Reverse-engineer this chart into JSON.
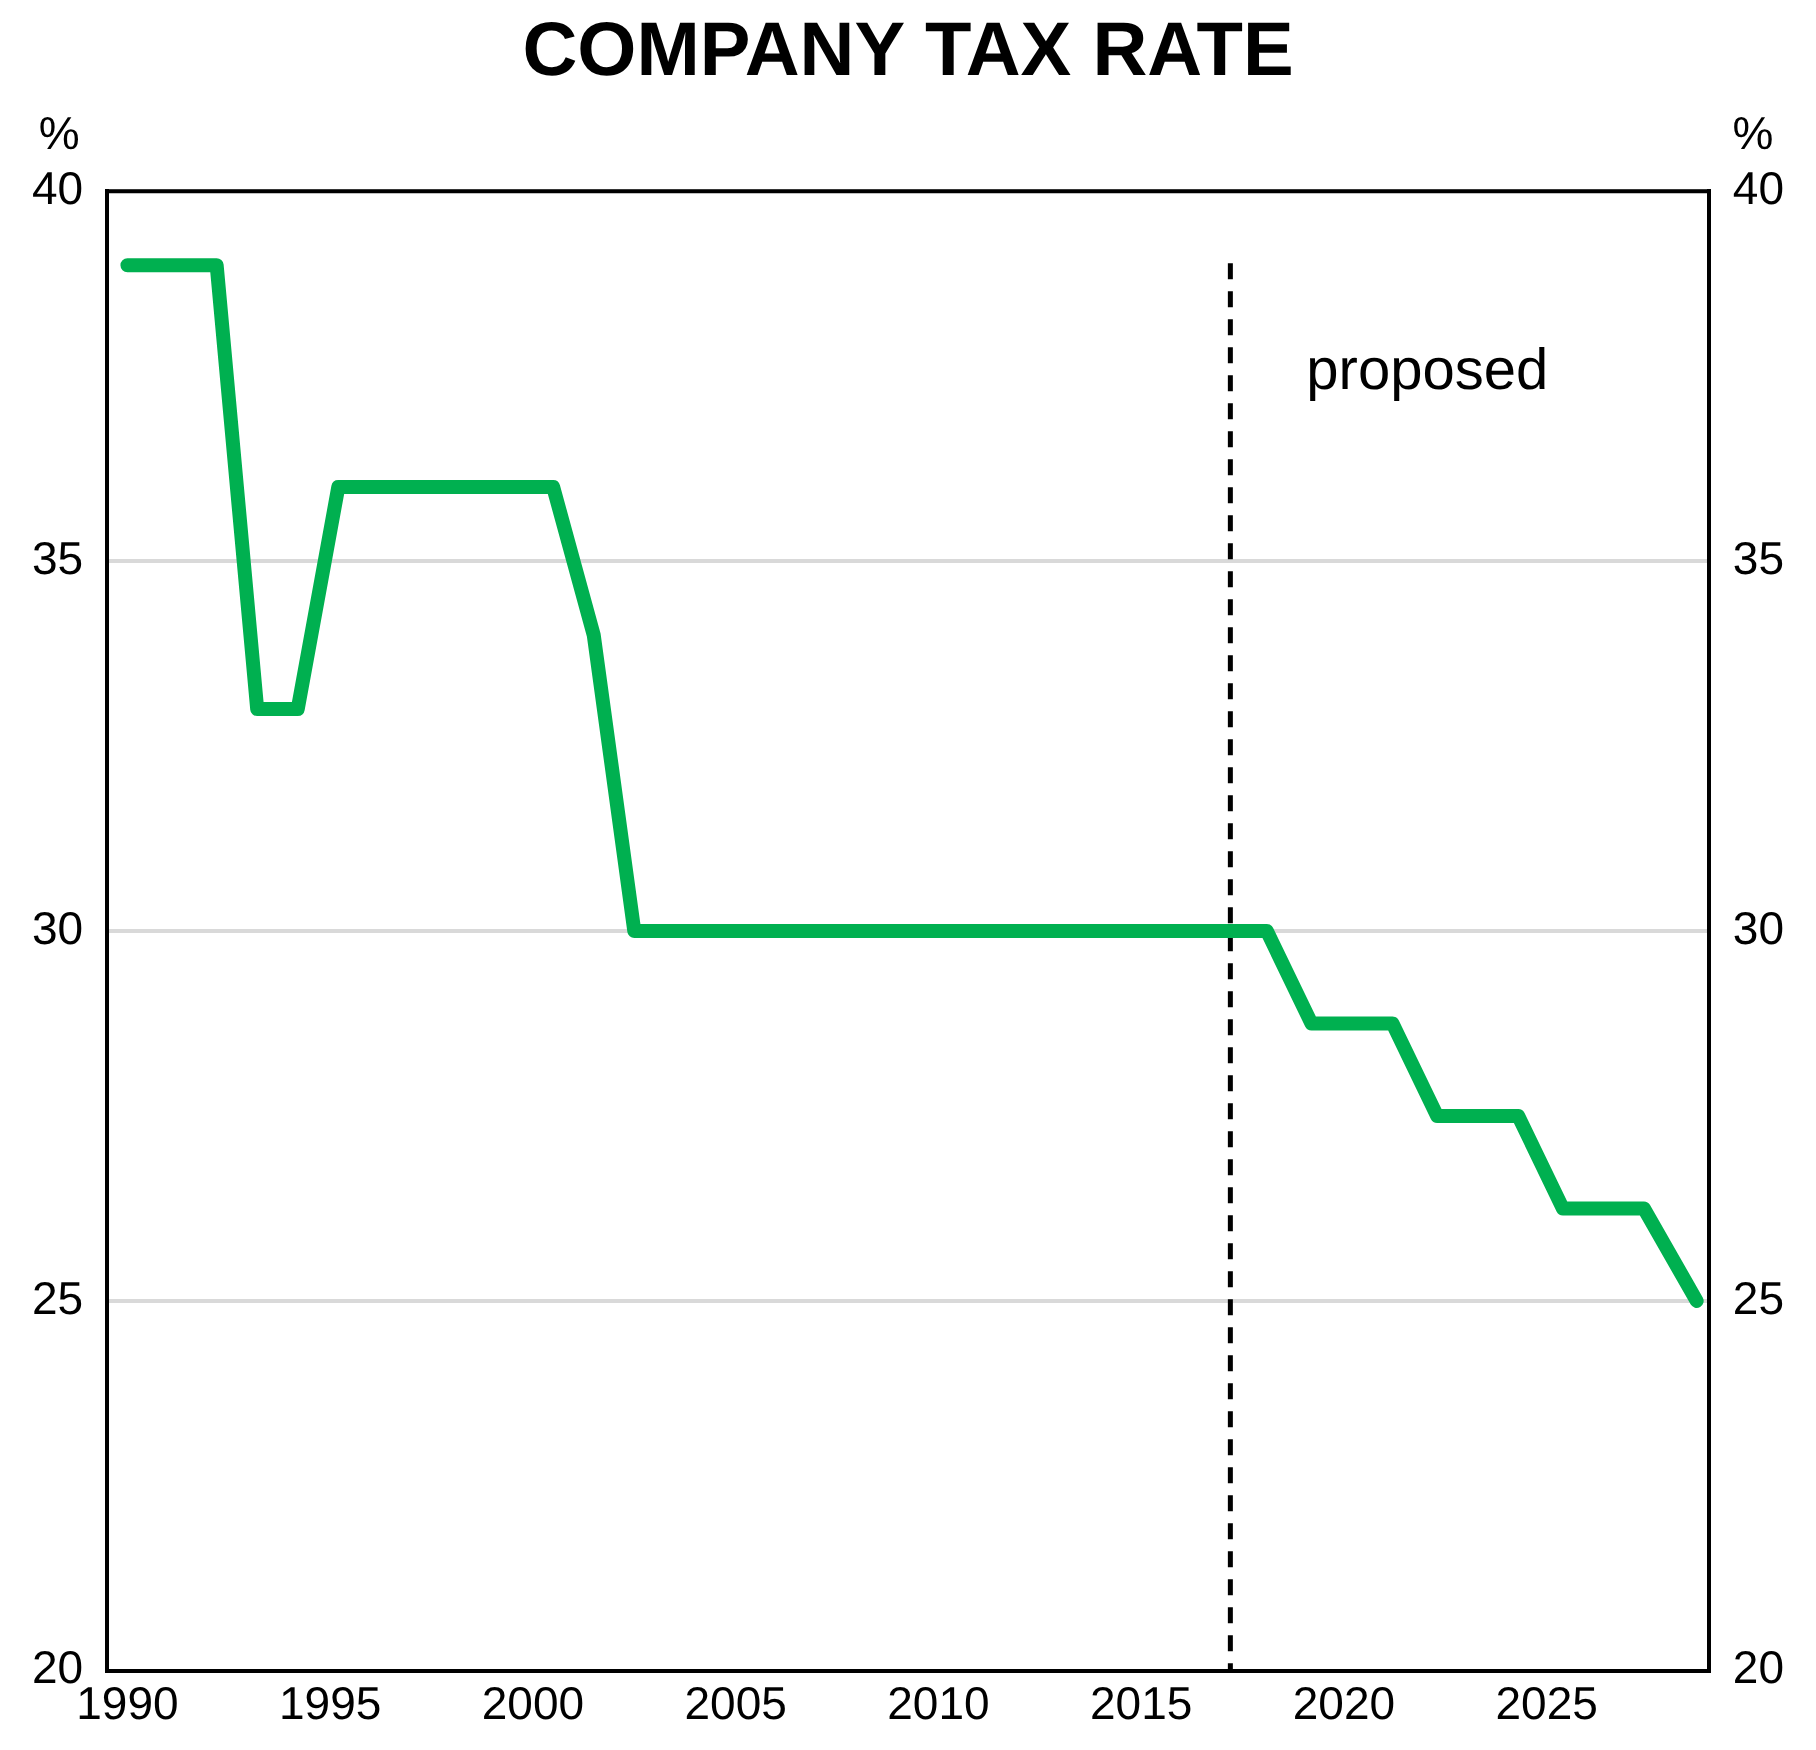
{
  "chart_data": {
    "type": "line",
    "title": "COMPANY TAX RATE",
    "ylabel": "%",
    "y2label": "%",
    "series": [
      {
        "color": "#00b050",
        "x": [
          1990,
          1992.2,
          1993.2,
          1994.2,
          1995.2,
          2000.5,
          2001.5,
          2002.5,
          2018.1,
          2019.2,
          2021.2,
          2022.3,
          2024.3,
          2025.4,
          2027.4,
          2028.7
        ],
        "values": [
          39,
          39,
          33,
          33,
          36,
          36,
          34,
          30,
          30,
          28.75,
          28.75,
          27.5,
          27.5,
          26.25,
          26.25,
          25
        ]
      }
    ],
    "xlim": [
      1989.5,
      2029
    ],
    "xticks": [
      1990,
      1995,
      2000,
      2005,
      2010,
      2015,
      2020,
      2025
    ],
    "ylim": [
      20,
      40
    ],
    "yticks": [
      20,
      25,
      30,
      35,
      40
    ],
    "y2lim": [
      20,
      40
    ],
    "y2ticks": [
      20,
      25,
      30,
      35,
      40
    ],
    "ref_lines": [
      {
        "axis": "x",
        "value": 2017.2,
        "label": "proposed",
        "color": "#000000",
        "line_style": "dashed"
      }
    ],
    "grid": "y",
    "legend": false,
    "marker": "none",
    "line_style": "solid"
  }
}
